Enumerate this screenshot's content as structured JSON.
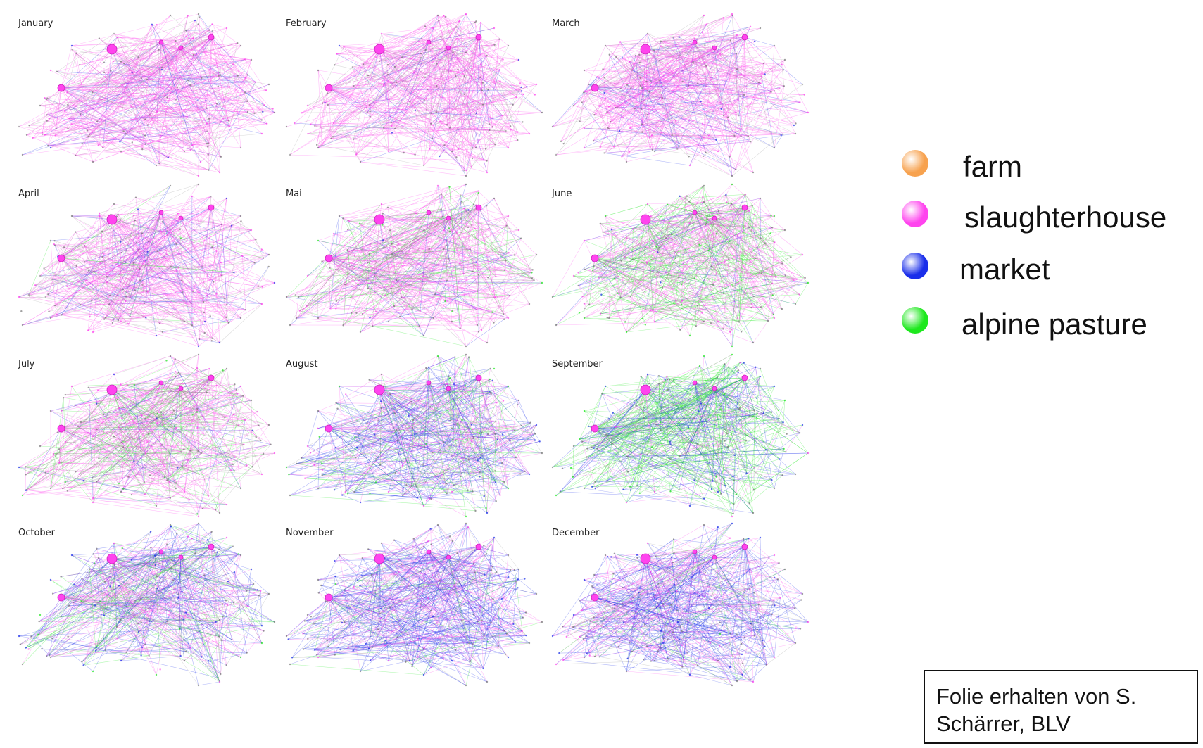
{
  "months": [
    "January",
    "February",
    "March",
    "April",
    "Mai",
    "June",
    "July",
    "August",
    "September",
    "October",
    "November",
    "December"
  ],
  "legend": [
    {
      "label": "farm",
      "color": "#f7a24f"
    },
    {
      "label": "slaughterhouse",
      "color": "#ff44ee"
    },
    {
      "label": "market",
      "color": "#1a2eea"
    },
    {
      "label": "alpine pasture",
      "color": "#1ee81e"
    }
  ],
  "panel_mix": [
    {
      "pink": 0.75,
      "blue": 0.1,
      "green": 0.0
    },
    {
      "pink": 0.75,
      "blue": 0.1,
      "green": 0.0
    },
    {
      "pink": 0.72,
      "blue": 0.12,
      "green": 0.0
    },
    {
      "pink": 0.72,
      "blue": 0.12,
      "green": 0.02
    },
    {
      "pink": 0.62,
      "blue": 0.1,
      "green": 0.2
    },
    {
      "pink": 0.5,
      "blue": 0.08,
      "green": 0.38
    },
    {
      "pink": 0.62,
      "blue": 0.08,
      "green": 0.22
    },
    {
      "pink": 0.35,
      "blue": 0.38,
      "green": 0.22
    },
    {
      "pink": 0.15,
      "blue": 0.35,
      "green": 0.48
    },
    {
      "pink": 0.3,
      "blue": 0.45,
      "green": 0.18
    },
    {
      "pink": 0.35,
      "blue": 0.52,
      "green": 0.04
    },
    {
      "pink": 0.38,
      "blue": 0.5,
      "green": 0.03
    }
  ],
  "credit": {
    "line1": "Folie erhalten von S.",
    "line2": "Schärrer, BLV"
  }
}
